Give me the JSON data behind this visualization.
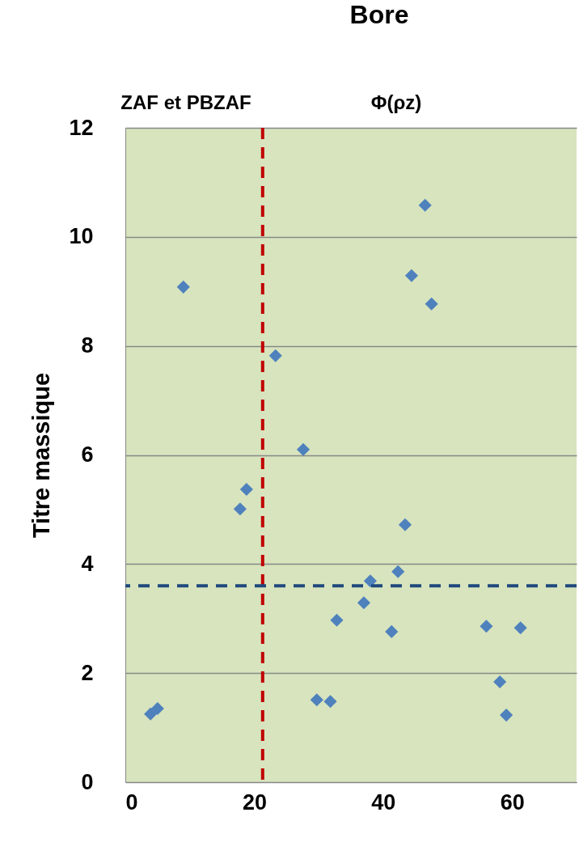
{
  "chart_data": {
    "type": "scatter",
    "title": "Bore",
    "ylabel": "Titre massique",
    "x": [
      3.9,
      5.0,
      9.0,
      17.8,
      18.8,
      23.3,
      27.6,
      29.7,
      31.8,
      32.8,
      37.0,
      38.0,
      41.3,
      42.3,
      43.4,
      44.4,
      46.5,
      47.5,
      56.0,
      58.1,
      59.1,
      61.3
    ],
    "series": [
      {
        "color": "#4f81bd",
        "values": [
          1.25,
          1.35,
          9.08,
          5.01,
          5.37,
          7.82,
          6.1,
          1.51,
          1.48,
          2.97,
          3.29,
          3.69,
          2.76,
          3.86,
          4.72,
          9.29,
          10.58,
          8.77,
          2.86,
          1.84,
          1.23,
          2.83
        ]
      }
    ],
    "xlim": [
      0,
      70
    ],
    "xticks": [
      0,
      20,
      40,
      60
    ],
    "ylim": [
      0,
      12
    ],
    "yticks": [
      0,
      2,
      4,
      6,
      8,
      10,
      12
    ],
    "grid": "y",
    "marker": "diamond",
    "ref_lines": [
      {
        "axis": "x",
        "value": 21.3,
        "color": "#c00000",
        "line_style": "dashed"
      },
      {
        "axis": "y",
        "value": 3.6,
        "color": "#1f497d",
        "line_style": "dashed"
      }
    ],
    "annotations": [
      "ZAF et PBZAF",
      "Φ(ρz)"
    ]
  }
}
